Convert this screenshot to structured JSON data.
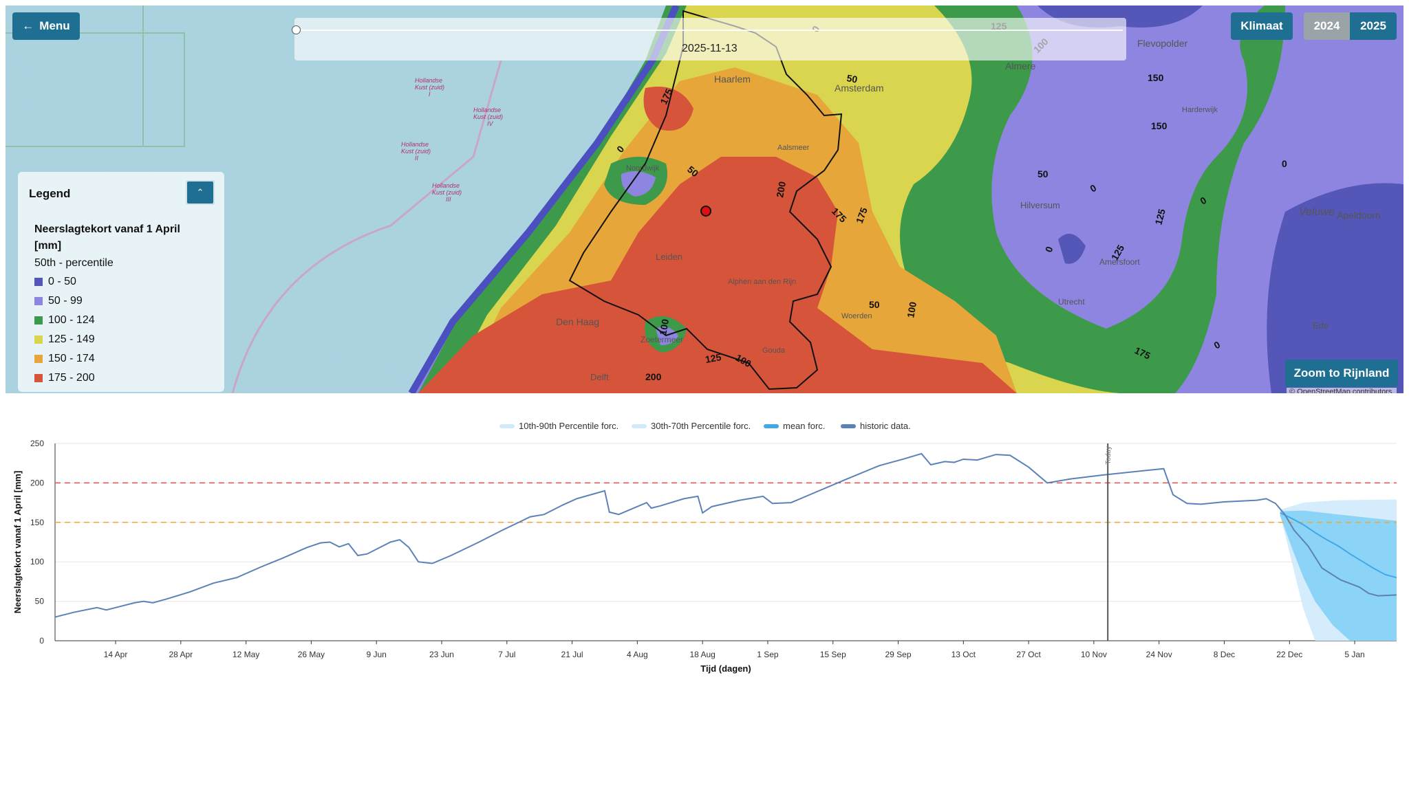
{
  "map": {
    "menu_label": "Menu",
    "menu_icon": "arrow-left-icon",
    "klimaat_label": "Klimaat",
    "years": [
      "2024",
      "2025"
    ],
    "selected_year": "2025",
    "zoom_label": "Zoom to Rijnland",
    "attribution": "© OpenStreetMap contributors.",
    "timeslider": {
      "date": "2025-11-13"
    },
    "legend": {
      "title": "Legend",
      "toggle_icon": "chevron-up-icon",
      "variable": "Neerslagtekort vanaf 1 April [mm]",
      "percentile": "50th - percentile",
      "classes": [
        {
          "label": "0 - 50",
          "color": "#5456b8"
        },
        {
          "label": "50 - 99",
          "color": "#8d85e0"
        },
        {
          "label": "100 - 124",
          "color": "#3c9a4a"
        },
        {
          "label": "125 - 149",
          "color": "#d9d54e"
        },
        {
          "label": "150 - 174",
          "color": "#e6a63a"
        },
        {
          "label": "175 - 200",
          "color": "#d6543a"
        }
      ]
    },
    "places": [
      "Haarlem",
      "Amsterdam",
      "Almere",
      "Flevopolder",
      "Leiden",
      "Den Haag",
      "Delft",
      "Hilversum",
      "Amersfoort",
      "Utrecht",
      "Apeldoorn",
      "Veluwe",
      "Ede",
      "Zoetermeer",
      "Alphen aan den Rijn",
      "Harderwijk",
      "Noordwijk",
      "Woerden",
      "Gouda",
      "Aalsmeer"
    ],
    "sea_labels": [
      "Hollandse Kust (zuid) I",
      "Hollandse Kust (zuid) II",
      "Hollandse Kust (zuid) III",
      "Hollandse Kust (zuid) IV"
    ],
    "contour_labels": [
      "0",
      "50",
      "100",
      "125",
      "150",
      "175",
      "200"
    ]
  },
  "chart_data": {
    "type": "line",
    "legend": [
      "10th-90th Percentile forc.",
      "30th-70th Percentile forc.",
      "mean forc.",
      "historic data."
    ],
    "legend_position": "top",
    "ylabel": "Neerslagtekort vanaf 1 April [mm]",
    "xlabel": "Tijd (dagen)",
    "ylim": [
      0,
      250
    ],
    "yticks": [
      0,
      50,
      100,
      150,
      200,
      250
    ],
    "xlim": [
      "2025-04-01",
      "2026-01-14"
    ],
    "xticks": [
      "14 Apr",
      "28 Apr",
      "12 May",
      "26 May",
      "9 Jun",
      "23 Jun",
      "7 Jul",
      "21 Jul",
      "4 Aug",
      "18 Aug",
      "1 Sep",
      "15 Sep",
      "29 Sep",
      "13 Oct",
      "27 Oct",
      "10 Nov",
      "24 Nov",
      "8 Dec",
      "22 Dec",
      "5 Jan"
    ],
    "today_label": "Today",
    "today": "2025-11-13",
    "thresholds": [
      {
        "value": 200,
        "color": "#e84d4d"
      },
      {
        "value": 150,
        "color": "#f0a830"
      }
    ],
    "grid": true,
    "series": [
      {
        "name": "historic data.",
        "color": "#5b82b8",
        "points": [
          [
            "2025-04-01",
            30
          ],
          [
            "2025-04-05",
            36
          ],
          [
            "2025-04-10",
            42
          ],
          [
            "2025-04-12",
            39
          ],
          [
            "2025-04-14",
            42
          ],
          [
            "2025-04-18",
            48
          ],
          [
            "2025-04-20",
            50
          ],
          [
            "2025-04-22",
            48
          ],
          [
            "2025-04-25",
            53
          ],
          [
            "2025-04-30",
            62
          ],
          [
            "2025-05-05",
            73
          ],
          [
            "2025-05-10",
            80
          ],
          [
            "2025-05-15",
            93
          ],
          [
            "2025-05-20",
            105
          ],
          [
            "2025-05-25",
            118
          ],
          [
            "2025-05-28",
            124
          ],
          [
            "2025-05-30",
            125
          ],
          [
            "2025-06-01",
            119
          ],
          [
            "2025-06-03",
            123
          ],
          [
            "2025-06-05",
            108
          ],
          [
            "2025-06-07",
            110
          ],
          [
            "2025-06-12",
            125
          ],
          [
            "2025-06-14",
            128
          ],
          [
            "2025-06-16",
            118
          ],
          [
            "2025-06-18",
            100
          ],
          [
            "2025-06-21",
            98
          ],
          [
            "2025-06-25",
            108
          ],
          [
            "2025-07-01",
            125
          ],
          [
            "2025-07-06",
            140
          ],
          [
            "2025-07-12",
            157
          ],
          [
            "2025-07-15",
            160
          ],
          [
            "2025-07-19",
            172
          ],
          [
            "2025-07-22",
            180
          ],
          [
            "2025-07-25",
            185
          ],
          [
            "2025-07-28",
            190
          ],
          [
            "2025-07-29",
            163
          ],
          [
            "2025-07-31",
            160
          ],
          [
            "2025-08-06",
            175
          ],
          [
            "2025-08-07",
            168
          ],
          [
            "2025-08-09",
            171
          ],
          [
            "2025-08-14",
            180
          ],
          [
            "2025-08-17",
            183
          ],
          [
            "2025-08-18",
            162
          ],
          [
            "2025-08-20",
            170
          ],
          [
            "2025-08-26",
            178
          ],
          [
            "2025-08-31",
            183
          ],
          [
            "2025-09-02",
            174
          ],
          [
            "2025-09-06",
            175
          ],
          [
            "2025-09-10",
            185
          ],
          [
            "2025-09-18",
            205
          ],
          [
            "2025-09-25",
            222
          ],
          [
            "2025-09-30",
            230
          ],
          [
            "2025-10-04",
            237
          ],
          [
            "2025-10-06",
            223
          ],
          [
            "2025-10-09",
            227
          ],
          [
            "2025-10-11",
            226
          ],
          [
            "2025-10-13",
            230
          ],
          [
            "2025-10-16",
            229
          ],
          [
            "2025-10-20",
            236
          ],
          [
            "2025-10-23",
            235
          ],
          [
            "2025-10-27",
            220
          ],
          [
            "2025-10-31",
            200
          ],
          [
            "2025-11-05",
            205
          ],
          [
            "2025-11-12",
            210
          ],
          [
            "2025-11-20",
            215
          ],
          [
            "2025-11-25",
            218
          ],
          [
            "2025-11-27",
            185
          ],
          [
            "2025-11-30",
            174
          ],
          [
            "2025-12-03",
            173
          ],
          [
            "2025-12-08",
            176
          ],
          [
            "2025-12-15",
            178
          ],
          [
            "2025-12-17",
            180
          ],
          [
            "2025-12-19",
            174
          ],
          [
            "2025-12-21",
            160
          ],
          [
            "2025-12-23",
            140
          ],
          [
            "2025-12-26",
            120
          ],
          [
            "2025-12-29",
            92
          ],
          [
            "2026-01-02",
            77
          ],
          [
            "2026-01-06",
            68
          ],
          [
            "2026-01-08",
            60
          ],
          [
            "2026-01-10",
            57
          ],
          [
            "2026-01-14",
            58
          ]
        ]
      },
      {
        "name": "mean forc.",
        "color": "#3fa9e8",
        "points": [
          [
            0,
            162
          ],
          [
            0.1,
            155
          ],
          [
            0.2,
            147
          ],
          [
            0.3,
            137
          ],
          [
            0.4,
            128
          ],
          [
            0.5,
            120
          ],
          [
            0.6,
            110
          ],
          [
            0.7,
            101
          ],
          [
            0.8,
            92
          ],
          [
            0.9,
            84
          ],
          [
            1.0,
            80
          ]
        ]
      }
    ],
    "bands": [
      {
        "name": "10th-90th Percentile forc.",
        "color": "#cfeafb",
        "low": [
          [
            0,
            160
          ],
          [
            0.1,
            100
          ],
          [
            0.2,
            40
          ],
          [
            0.3,
            0
          ],
          [
            1.0,
            0
          ]
        ],
        "high": [
          [
            0,
            166
          ],
          [
            0.2,
            175
          ],
          [
            0.5,
            178
          ],
          [
            1.0,
            179
          ]
        ]
      },
      {
        "name": "30th-70th Percentile forc.",
        "color": "#7fcff7",
        "low": [
          [
            0,
            158
          ],
          [
            0.1,
            118
          ],
          [
            0.2,
            80
          ],
          [
            0.3,
            50
          ],
          [
            0.45,
            20
          ],
          [
            0.6,
            0
          ],
          [
            1.0,
            0
          ]
        ],
        "high": [
          [
            0,
            164
          ],
          [
            0.2,
            165
          ],
          [
            0.5,
            160
          ],
          [
            1.0,
            152
          ]
        ]
      }
    ]
  }
}
